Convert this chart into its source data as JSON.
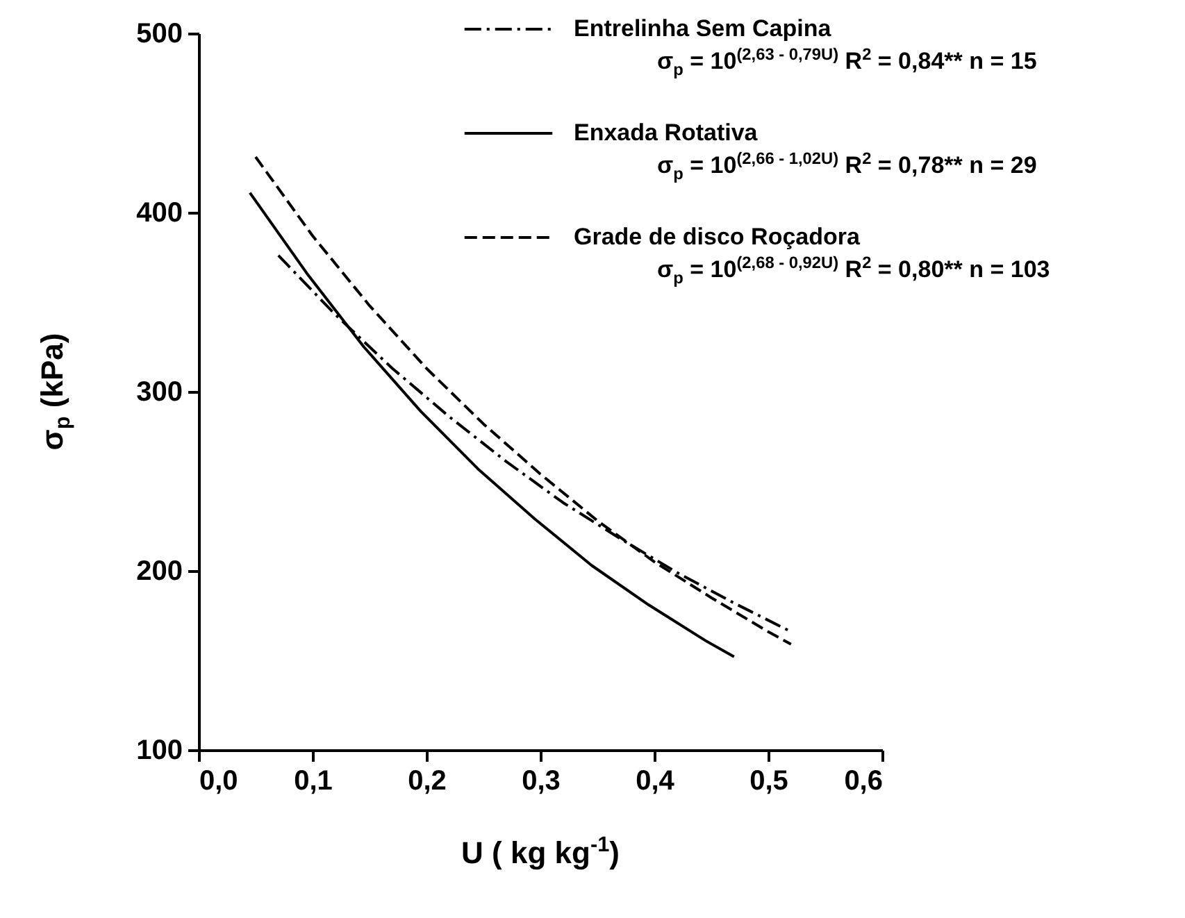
{
  "chart_data": {
    "type": "line",
    "xlabel": "U ( kg kg$^{-1}$)",
    "ylabel": "σ$_{p}$ (kPa)",
    "xlim": [
      0,
      0.6
    ],
    "ylim": [
      100,
      500
    ],
    "xticks": [
      {
        "value": 0,
        "label": "0,0"
      },
      {
        "value": 0.1,
        "label": "0,1"
      },
      {
        "value": 0.2,
        "label": "0,2"
      },
      {
        "value": 0.3,
        "label": "0,3"
      },
      {
        "value": 0.4,
        "label": "0,4"
      },
      {
        "value": 0.5,
        "label": "0,5"
      },
      {
        "value": 0.6,
        "label": "0,6"
      }
    ],
    "yticks": [
      100,
      200,
      300,
      400,
      500
    ],
    "grid": false,
    "legend": "top right",
    "marker": "none",
    "series": [
      {
        "name": "Entrelinha Sem Capina",
        "color": "#000000",
        "line_style": "dashdot",
        "x": [
          0.07,
          0.12,
          0.17,
          0.22,
          0.27,
          0.32,
          0.37,
          0.42,
          0.47,
          0.52
        ],
        "values": [
          376,
          343,
          313,
          286,
          261,
          238,
          218,
          199,
          182,
          166
        ]
      },
      {
        "name": "Enxada Rotativa",
        "color": "#000000",
        "line_style": "solid",
        "x": [
          0.045,
          0.095,
          0.145,
          0.195,
          0.245,
          0.295,
          0.345,
          0.395,
          0.445,
          0.47
        ],
        "values": [
          411,
          366,
          325,
          289,
          257,
          229,
          203,
          181,
          161,
          152
        ]
      },
      {
        "name": "Grade de disco Roçadora",
        "color": "#000000",
        "line_style": "dashed",
        "x": [
          0.05,
          0.1,
          0.15,
          0.2,
          0.25,
          0.3,
          0.35,
          0.4,
          0.45,
          0.5,
          0.52
        ],
        "values": [
          431,
          387,
          348,
          313,
          282,
          254,
          228,
          205,
          185,
          166,
          159
        ]
      }
    ],
    "annotations": [
      "σ$_{p}$ = 10$^{(2,63 - 0,79U)}$  R$^{2}$ = 0,84**  n = 15",
      "σ$_{p}$ = 10$^{(2,66 - 1,02U)}$  R$^{2}$ = 0,78**  n = 29",
      "σ$_{p}$ = 10$^{(2,68 - 0,92U)}$  R$^{2}$ = 0,80**  n = 103"
    ]
  }
}
